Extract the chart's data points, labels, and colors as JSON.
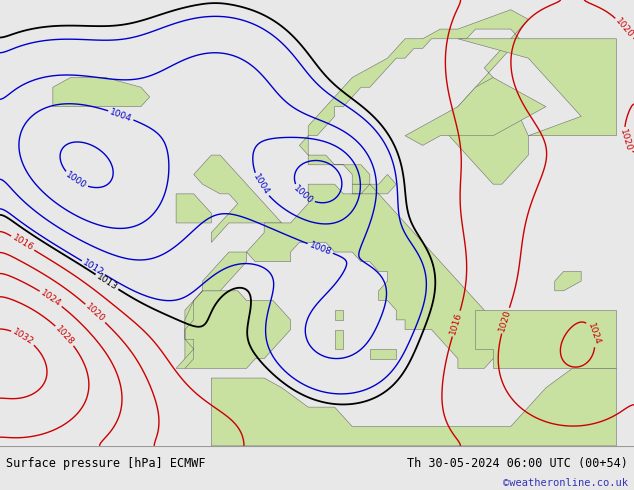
{
  "title_left": "Surface pressure [hPa] ECMWF",
  "title_right": "Th 30-05-2024 06:00 UTC (00+54)",
  "watermark": "©weatheronline.co.uk",
  "ocean_color": "#b8cfe0",
  "land_color": "#c8e0a0",
  "grey_land_color": "#c0c8c0",
  "footer_bg": "#e8e8e8",
  "footer_text_color": "#000000",
  "watermark_color": "#3333bb",
  "contour_blue": "#0000cc",
  "contour_red": "#cc0000",
  "contour_black": "#000000",
  "figsize": [
    6.34,
    4.9
  ],
  "dpi": 100
}
